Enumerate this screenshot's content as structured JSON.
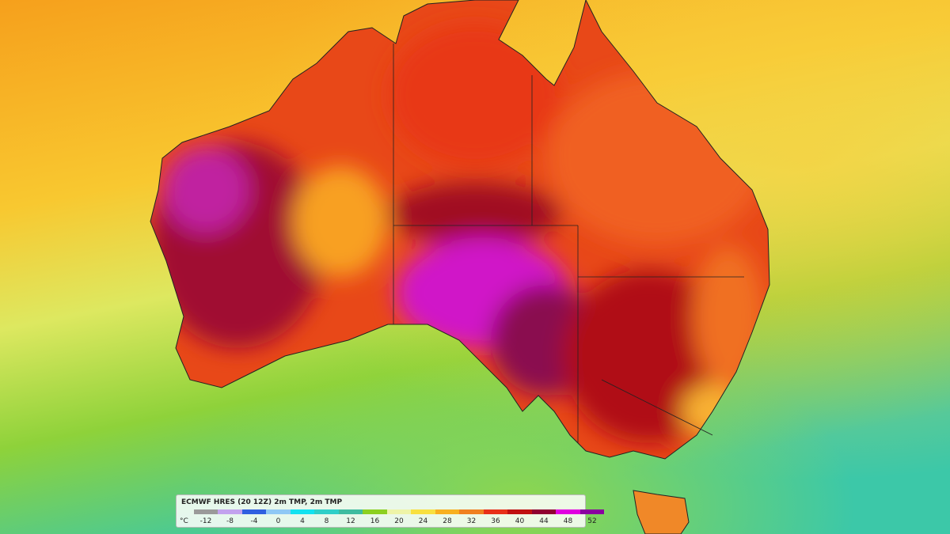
{
  "legend": {
    "title": "ECMWF HRES (20 12Z) 2m TMP, 2m TMP",
    "unit": "°C",
    "ticks": [
      -12,
      -8,
      -4,
      0,
      4,
      8,
      12,
      16,
      20,
      24,
      28,
      32,
      36,
      40,
      44,
      48,
      52
    ],
    "colors": [
      "#9a9a9a",
      "#c2a2ee",
      "#2f5fe0",
      "#8fc8f5",
      "#12e2f0",
      "#2fcfc8",
      "#3fbca0",
      "#8cd020",
      "#eef4a8",
      "#f8e040",
      "#f8b020",
      "#f08020",
      "#e83018",
      "#c01010",
      "#900030",
      "#e000e0",
      "#8a00a0"
    ]
  }
}
